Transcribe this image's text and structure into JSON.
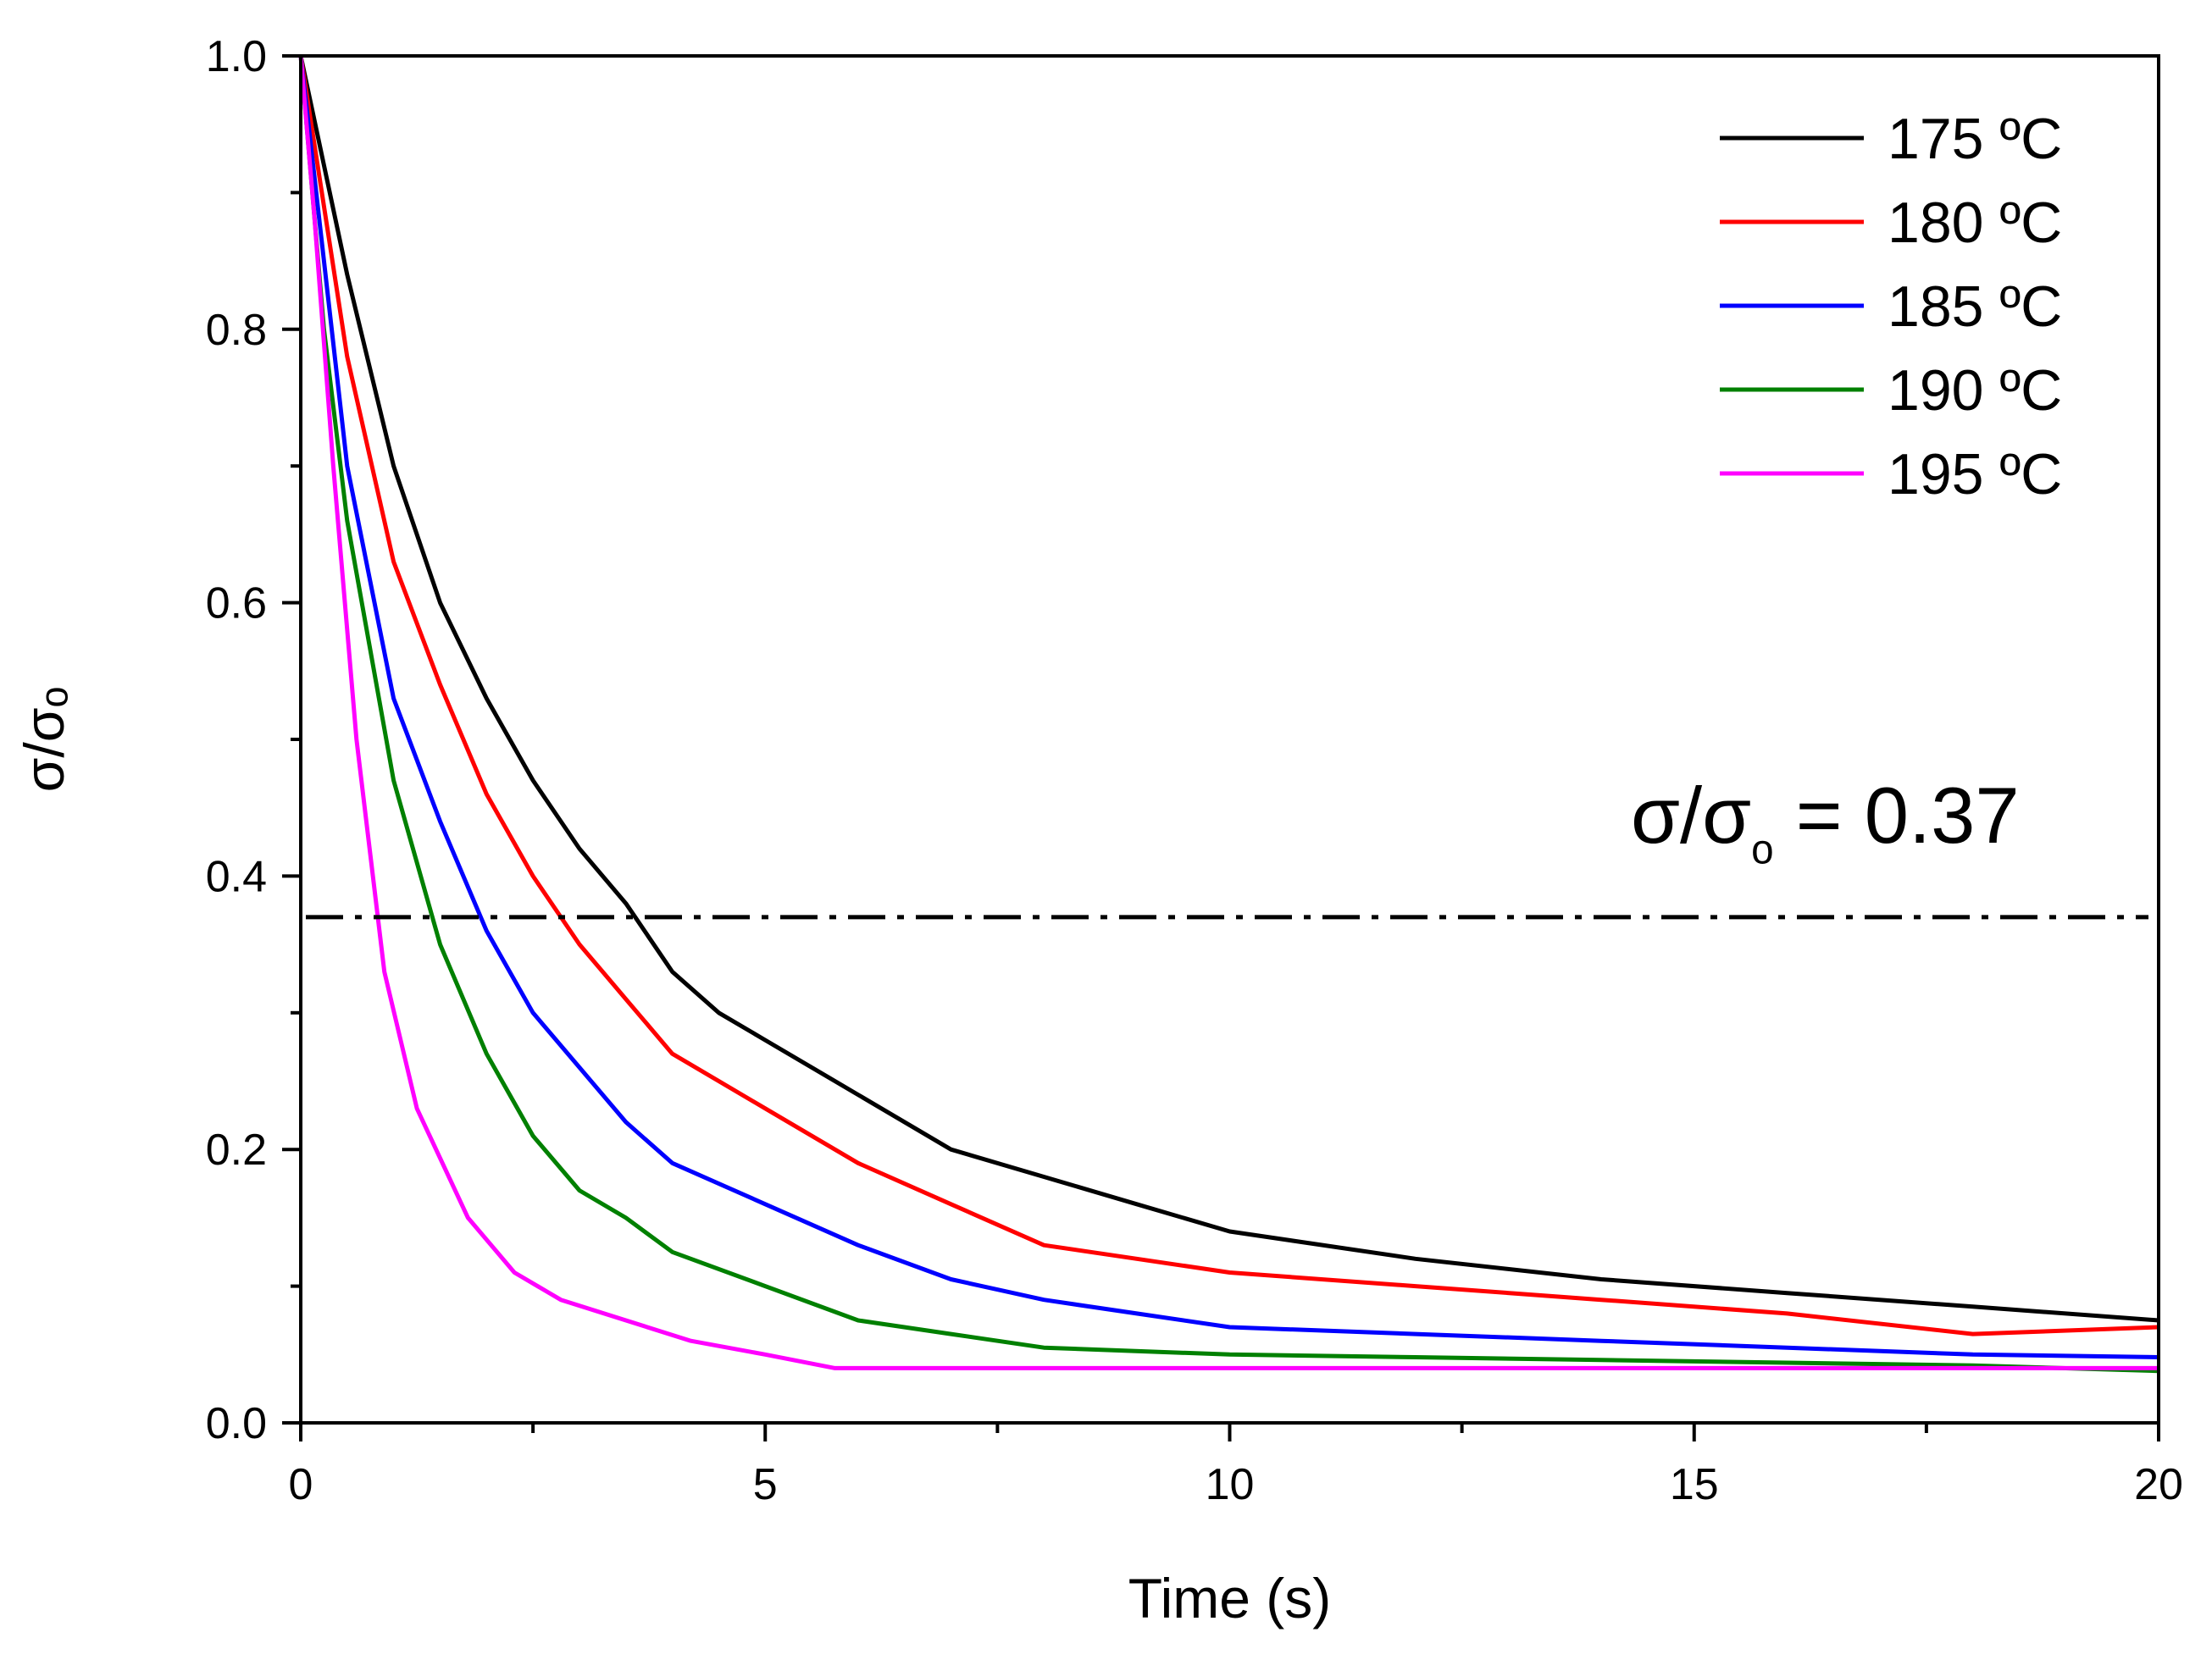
{
  "chart_data": {
    "type": "line",
    "title": "",
    "xlabel": "Time (s)",
    "ylabel": "σ/σₒ",
    "xlim": [
      0,
      20
    ],
    "ylim": [
      0.0,
      1.0
    ],
    "xticks": [
      "0",
      "5",
      "10",
      "15",
      "20"
    ],
    "yticks": [
      "0.0",
      "0.2",
      "0.4",
      "0.6",
      "0.8",
      "1.0"
    ],
    "grid": false,
    "legend_position": "top-right",
    "reference_line": {
      "y": 0.37,
      "style": "dash-dot",
      "color": "#000000"
    },
    "annotation": {
      "text_main": "σ/σ",
      "text_sub": "ₒ",
      "text_tail": " = 0.37"
    },
    "series": [
      {
        "name": "175 ºC",
        "color": "#000000",
        "x": [
          0,
          0.5,
          1,
          1.5,
          2,
          2.5,
          3,
          3.5,
          4,
          4.5,
          5,
          6,
          7,
          8,
          9,
          10,
          12,
          14,
          16,
          18,
          20
        ],
        "y": [
          1.0,
          0.84,
          0.7,
          0.6,
          0.53,
          0.47,
          0.42,
          0.38,
          0.33,
          0.3,
          0.28,
          0.24,
          0.2,
          0.18,
          0.16,
          0.14,
          0.12,
          0.105,
          0.095,
          0.085,
          0.075
        ]
      },
      {
        "name": "180 ºC",
        "color": "#ff0000",
        "x": [
          0,
          0.5,
          1,
          1.5,
          2,
          2.5,
          3,
          3.5,
          4,
          5,
          6,
          7,
          8,
          9,
          10,
          12,
          14,
          16,
          18,
          20
        ],
        "y": [
          1.0,
          0.78,
          0.63,
          0.54,
          0.46,
          0.4,
          0.35,
          0.31,
          0.27,
          0.23,
          0.19,
          0.16,
          0.13,
          0.12,
          0.11,
          0.1,
          0.09,
          0.08,
          0.065,
          0.07
        ]
      },
      {
        "name": "185 ºC",
        "color": "#0000ff",
        "x": [
          0,
          0.5,
          1,
          1.5,
          2,
          2.5,
          3,
          3.5,
          4,
          5,
          6,
          7,
          8,
          9,
          10,
          12,
          14,
          16,
          18,
          20
        ],
        "y": [
          1.0,
          0.7,
          0.53,
          0.44,
          0.36,
          0.3,
          0.26,
          0.22,
          0.19,
          0.16,
          0.13,
          0.105,
          0.09,
          0.08,
          0.07,
          0.065,
          0.06,
          0.055,
          0.05,
          0.048
        ]
      },
      {
        "name": "190 ºC",
        "color": "#008000",
        "x": [
          0,
          0.25,
          0.5,
          1,
          1.5,
          2,
          2.5,
          3,
          3.5,
          4,
          5,
          6,
          7,
          8,
          10,
          12,
          14,
          16,
          18,
          20
        ],
        "y": [
          1.0,
          0.8,
          0.66,
          0.47,
          0.35,
          0.27,
          0.21,
          0.17,
          0.15,
          0.125,
          0.1,
          0.075,
          0.065,
          0.055,
          0.05,
          0.048,
          0.046,
          0.044,
          0.042,
          0.038
        ]
      },
      {
        "name": "195 ºC",
        "color": "#ff00ff",
        "x": [
          0,
          0.15,
          0.35,
          0.6,
          0.9,
          1.25,
          1.8,
          2.3,
          2.8,
          3.5,
          4.2,
          5,
          5.75,
          7,
          10,
          15,
          20
        ],
        "y": [
          1.0,
          0.88,
          0.7,
          0.5,
          0.33,
          0.23,
          0.15,
          0.11,
          0.09,
          0.075,
          0.06,
          0.05,
          0.04,
          0.04,
          0.04,
          0.04,
          0.04
        ]
      }
    ]
  }
}
